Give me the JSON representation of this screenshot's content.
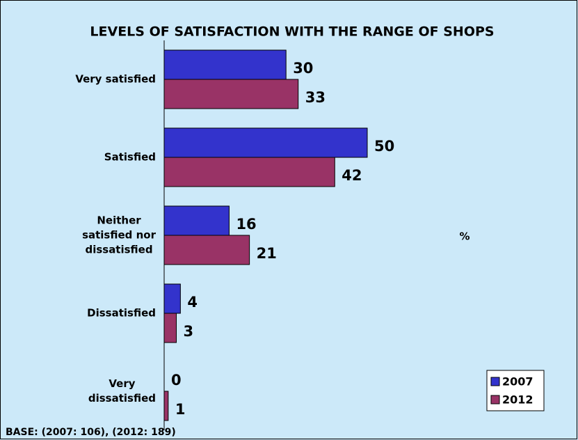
{
  "chart_data": {
    "type": "hbar",
    "title": "LEVELS OF SATISFACTION WITH THE RANGE OF SHOPS",
    "x_label": "%",
    "note": "BASE: (2007: 106), (2012: 189)",
    "categories": [
      "Very satisfied",
      "Satisfied",
      "Neither\nsatisfied nor\ndissatisfied",
      "Dissatisfied",
      "Very\ndissatisfied"
    ],
    "series": [
      {
        "name": "2007",
        "color": "#3333cc",
        "values": [
          30,
          50,
          16,
          4,
          0
        ]
      },
      {
        "name": "2012",
        "color": "#993366",
        "values": [
          33,
          42,
          21,
          3,
          1
        ]
      }
    ],
    "xlim": [
      0,
      100
    ],
    "legend": "lower right"
  }
}
